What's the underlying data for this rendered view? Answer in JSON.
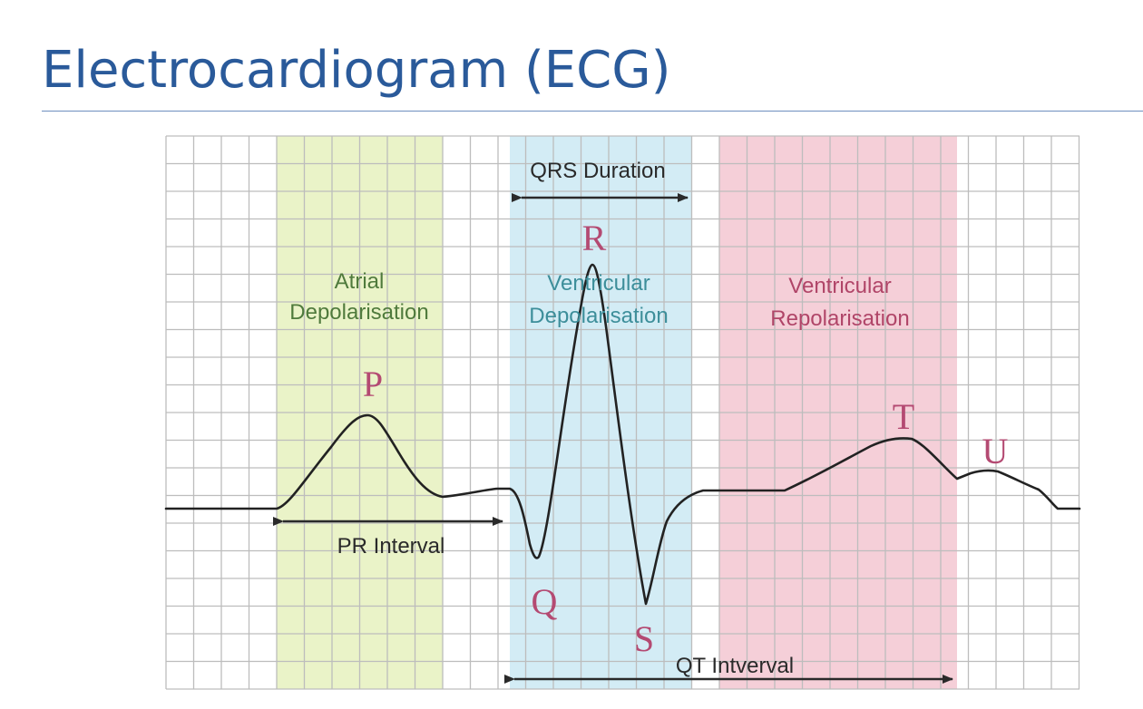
{
  "slide": {
    "title": "Electrocardiogram (ECG)"
  },
  "colors": {
    "title": "#2a5a9a",
    "atrial_band": "#eaf3c8",
    "ventricular_depol_band": "#d3ecf5",
    "ventricular_repol_band": "#f5cfd8",
    "grid": "#bdbdbd",
    "trace": "#222222",
    "atrial_text": "#4f7a3c",
    "depol_text": "#3d8e9a",
    "repol_text": "#b04568",
    "letter": "#b44a72"
  },
  "diagram": {
    "qrs_duration_label": "QRS Duration",
    "pr_interval_label": "PR Interval",
    "qt_interval_label": "QT Intverval",
    "regions": {
      "atrial": {
        "line1": "Atrial",
        "line2": "Depolarisation"
      },
      "ventricular_depol": {
        "line1": "Ventricular",
        "line2": "Depolarisation"
      },
      "ventricular_repol": {
        "line1": "Ventricular",
        "line2": "Repolarisation"
      }
    },
    "waves": {
      "p": "P",
      "q": "Q",
      "r": "R",
      "s": "S",
      "t": "T",
      "u": "U"
    }
  }
}
